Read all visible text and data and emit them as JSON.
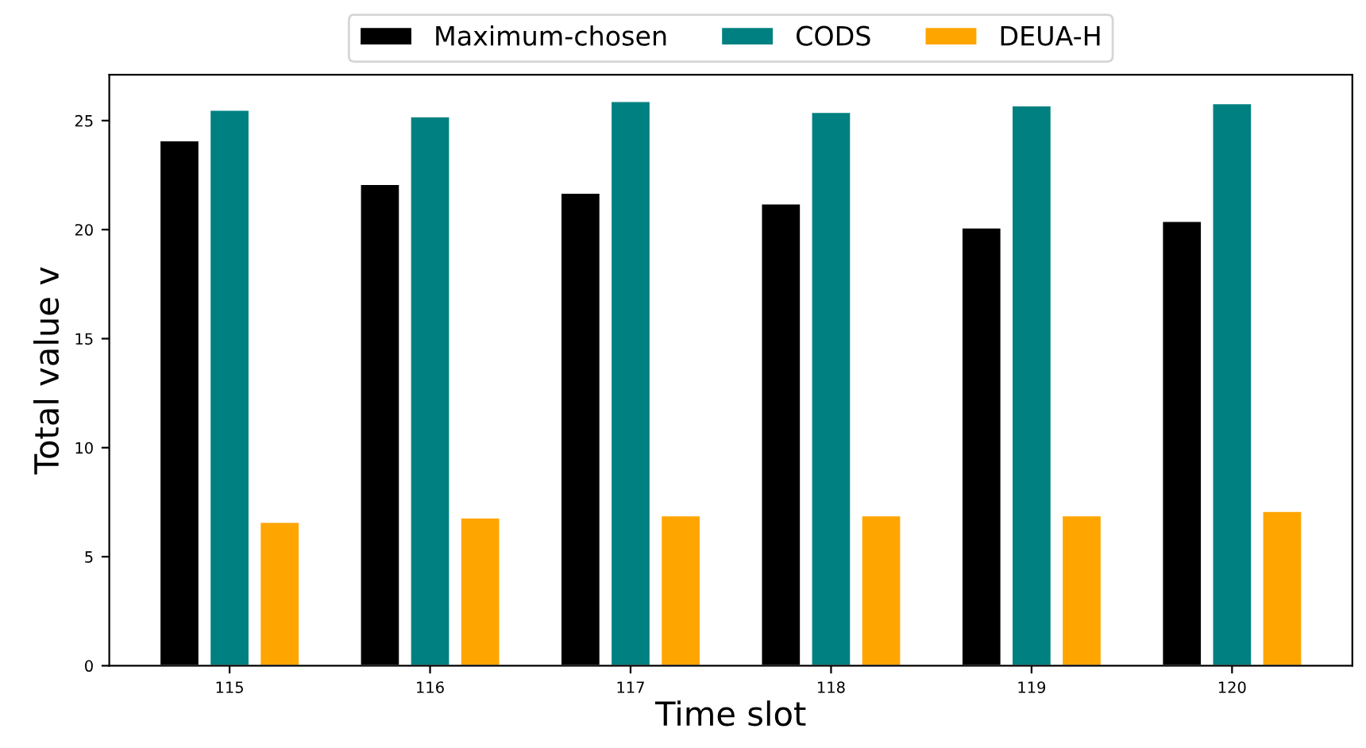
{
  "chart_data": {
    "type": "bar",
    "xlabel": "Time slot",
    "ylabel": "Total value v",
    "categories": [
      "115",
      "116",
      "117",
      "118",
      "119",
      "120"
    ],
    "series": [
      {
        "name": "Maximum-chosen",
        "color": "#000000",
        "values": [
          24.1,
          22.1,
          21.7,
          21.2,
          20.1,
          20.4
        ]
      },
      {
        "name": "CODS",
        "color": "#008080",
        "values": [
          25.5,
          25.2,
          25.9,
          25.4,
          25.7,
          25.8
        ]
      },
      {
        "name": "DEUA-H",
        "color": "#ffa500",
        "values": [
          6.6,
          6.8,
          6.9,
          6.9,
          6.9,
          7.1
        ]
      }
    ],
    "ylim": [
      0,
      27.1
    ],
    "yticks": [
      0,
      5,
      10,
      15,
      20,
      25
    ],
    "grid": false,
    "legend": "top"
  }
}
